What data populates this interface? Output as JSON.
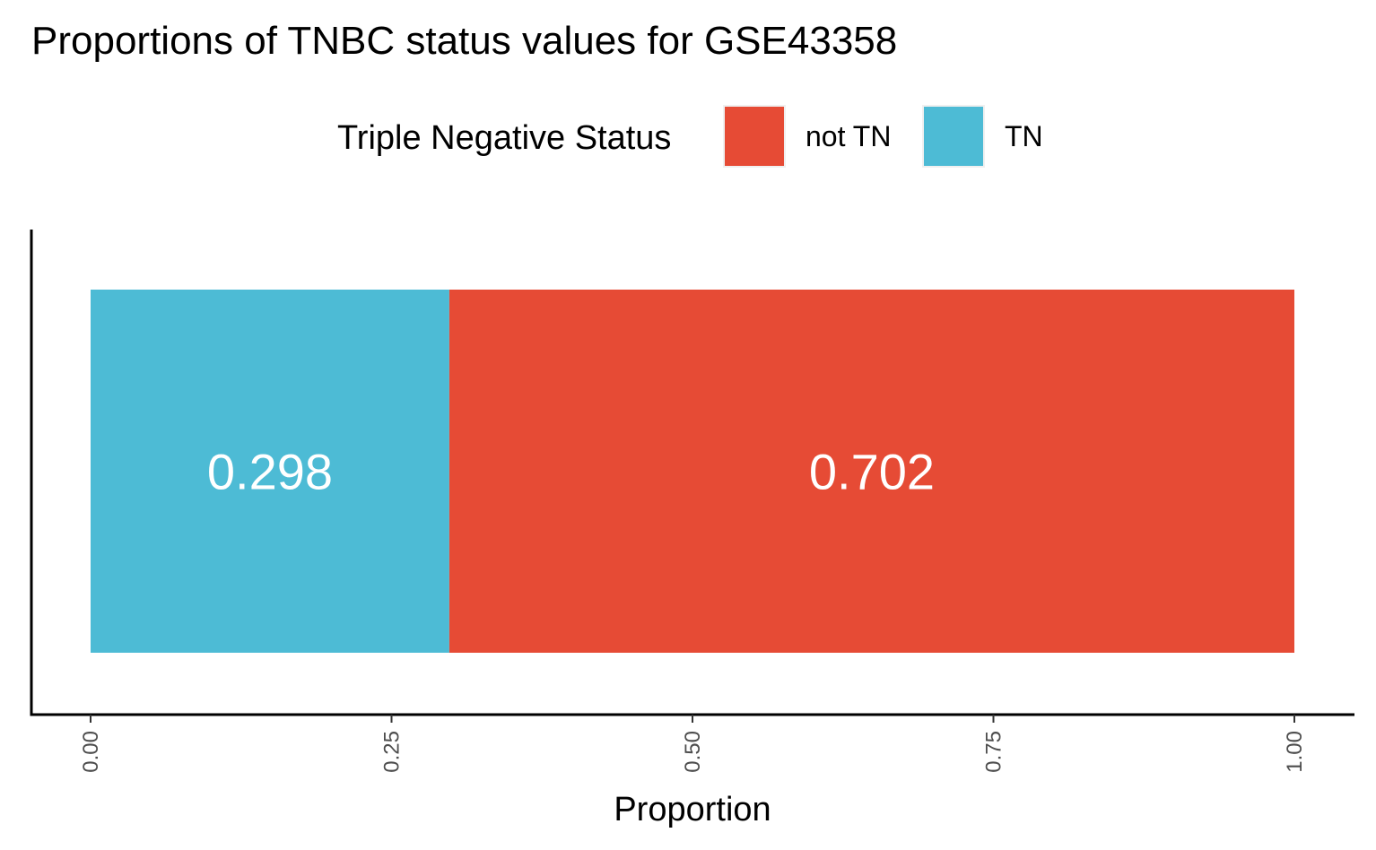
{
  "chart_data": {
    "type": "bar",
    "orientation": "horizontal",
    "stacked": true,
    "title": "Proportions of TNBC status values for GSE43358",
    "xlabel": "Proportion",
    "ylabel": "",
    "xlim": [
      0,
      1
    ],
    "x_ticks": [
      "0.00",
      "0.25",
      "0.50",
      "0.75",
      "1.00"
    ],
    "legend": {
      "title": "Triple Negative Status",
      "placement": "top",
      "entries": [
        {
          "name": "not TN",
          "color": "#E64B35"
        },
        {
          "name": "TN",
          "color": "#4DBBD5"
        }
      ]
    },
    "series": [
      {
        "name": "TN",
        "color": "#4DBBD5",
        "value": 0.298,
        "label": "0.298"
      },
      {
        "name": "not TN",
        "color": "#E64B35",
        "value": 0.702,
        "label": "0.702"
      }
    ],
    "grid": false
  }
}
